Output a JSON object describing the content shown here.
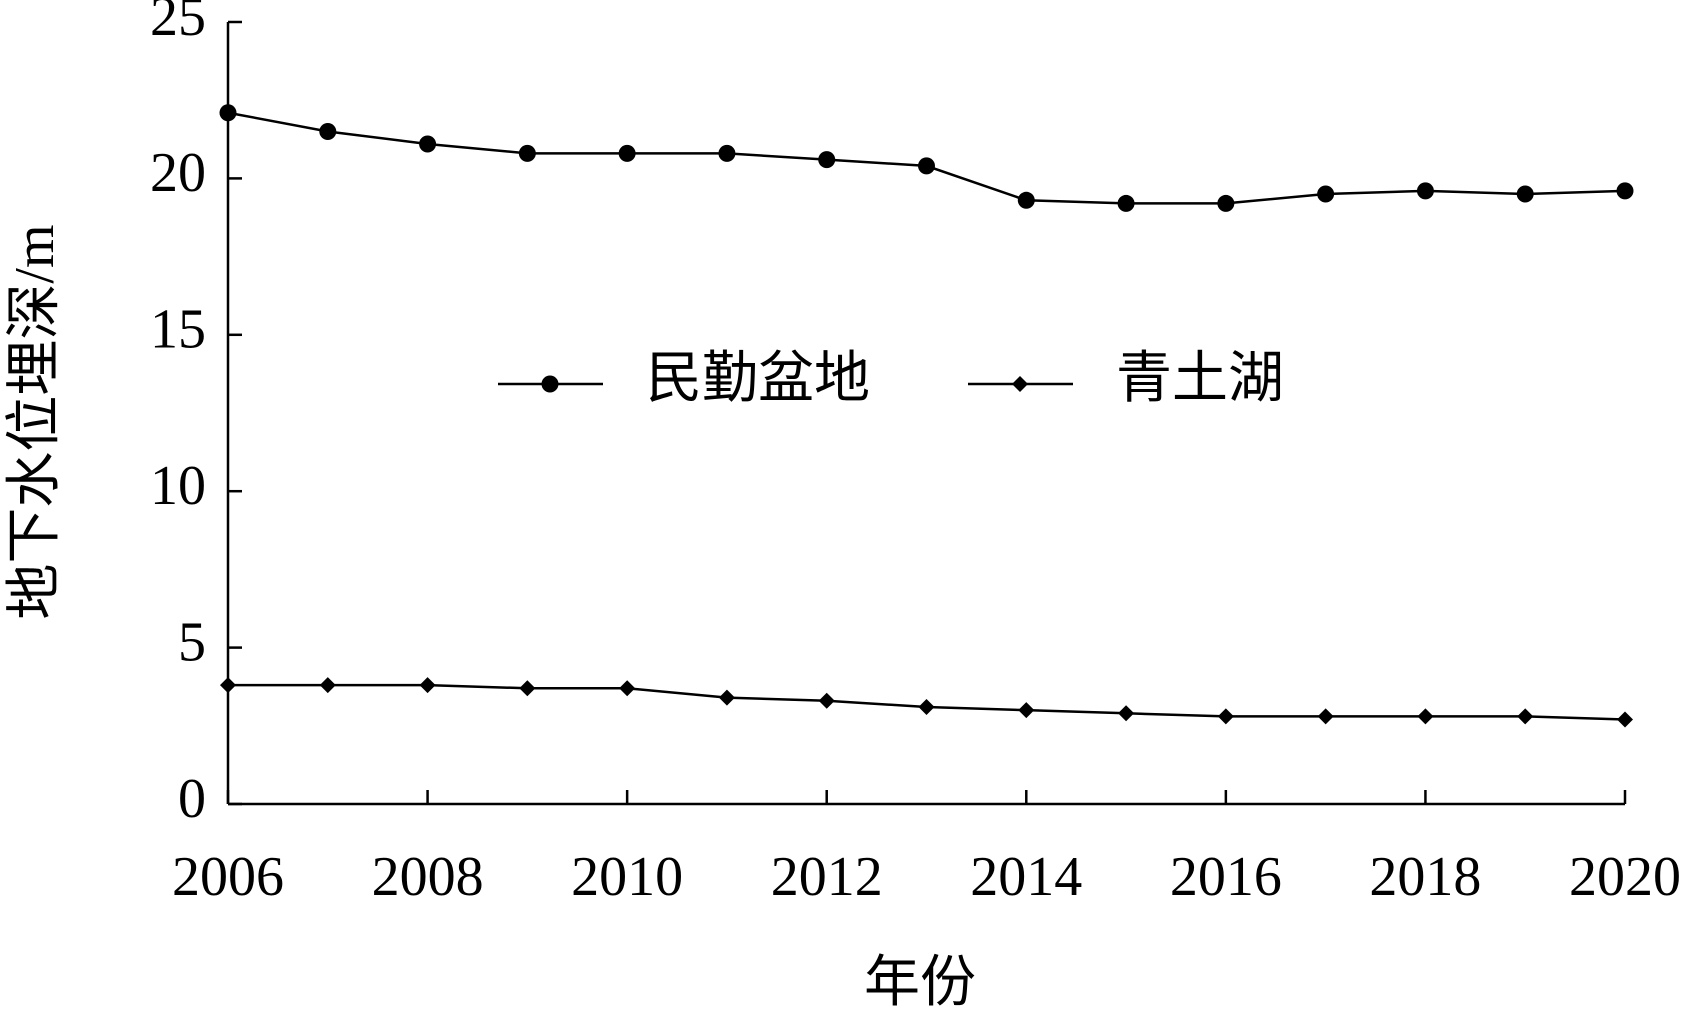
{
  "chart_data": {
    "type": "line",
    "x_label": "年份",
    "y_label": "地下水位埋深/m",
    "x": [
      2006,
      2007,
      2008,
      2009,
      2010,
      2011,
      2012,
      2013,
      2014,
      2015,
      2016,
      2017,
      2018,
      2019,
      2020
    ],
    "series": [
      {
        "name": "民勤盆地",
        "color": "#000000",
        "marker": "circle",
        "values": [
          22.1,
          21.5,
          21.1,
          20.8,
          20.8,
          20.8,
          20.6,
          20.4,
          19.3,
          19.2,
          19.2,
          19.5,
          19.6,
          19.5,
          19.6
        ]
      },
      {
        "name": "青土湖",
        "color": "#000000",
        "marker": "diamond",
        "values": [
          3.8,
          3.8,
          3.8,
          3.7,
          3.7,
          3.4,
          3.3,
          3.1,
          3.0,
          2.9,
          2.8,
          2.8,
          2.8,
          2.8,
          2.7
        ]
      }
    ],
    "xlim": [
      2006,
      2020
    ],
    "xticks": [
      2006,
      2008,
      2010,
      2012,
      2014,
      2016,
      2018,
      2020
    ],
    "ylim": [
      0,
      25
    ],
    "yticks": [
      0,
      5,
      10,
      15,
      20,
      25
    ],
    "grid": false,
    "legend": "center"
  }
}
